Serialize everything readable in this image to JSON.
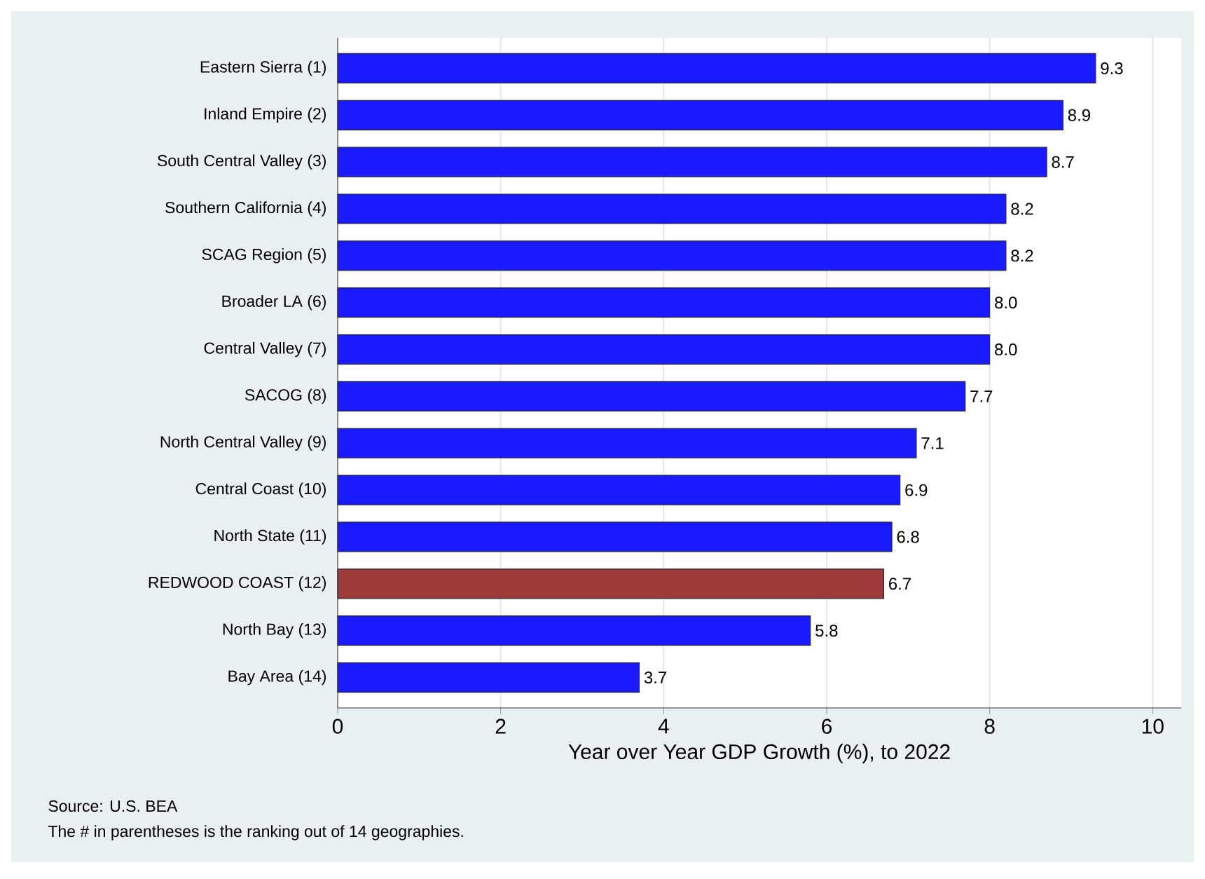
{
  "chart_data": {
    "type": "bar",
    "orientation": "horizontal",
    "xlabel": "Year over Year GDP Growth (%), to 2022",
    "categories": [
      "Eastern Sierra (1)",
      "Inland Empire (2)",
      "South Central Valley (3)",
      "Southern California (4)",
      "SCAG Region (5)",
      "Broader LA (6)",
      "Central Valley (7)",
      "SACOG (8)",
      "North Central Valley (9)",
      "Central Coast (10)",
      "North State (11)",
      "REDWOOD COAST (12)",
      "North Bay (13)",
      "Bay Area (14)"
    ],
    "values": [
      9.3,
      8.9,
      8.7,
      8.2,
      8.2,
      8.0,
      8.0,
      7.7,
      7.1,
      6.9,
      6.8,
      6.7,
      5.8,
      3.7
    ],
    "value_labels": [
      "9.3",
      "8.9",
      "8.7",
      "8.2",
      "8.2",
      "8.0",
      "8.0",
      "7.7",
      "7.1",
      "6.9",
      "6.8",
      "6.7",
      "5.8",
      "3.7"
    ],
    "colors": [
      "#1a1aff",
      "#1a1aff",
      "#1a1aff",
      "#1a1aff",
      "#1a1aff",
      "#1a1aff",
      "#1a1aff",
      "#1a1aff",
      "#1a1aff",
      "#1a1aff",
      "#1a1aff",
      "#9e3a38",
      "#1a1aff",
      "#1a1aff"
    ],
    "xlim": [
      0,
      10.35
    ],
    "xticks": [
      0,
      2,
      4,
      6,
      8,
      10
    ],
    "grid": "x",
    "annotations": [
      "Source: U.S. BEA",
      "The # in parentheses is the ranking out of 14 geographies."
    ]
  }
}
